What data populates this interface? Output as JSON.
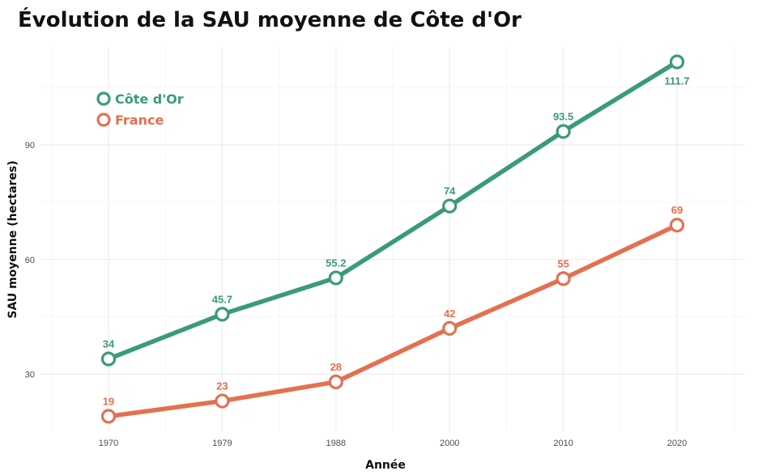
{
  "chart_data": {
    "type": "line",
    "title": "Évolution de la SAU moyenne de Côte d'Or",
    "xlabel": "Année",
    "ylabel": "SAU moyenne (hectares)",
    "x": [
      1970,
      1979,
      1988,
      2000,
      2010,
      2020
    ],
    "xticks": [
      1970,
      1979,
      1988,
      2000,
      2010,
      2020
    ],
    "yticks": [
      30,
      60,
      90
    ],
    "ylim": [
      15,
      115
    ],
    "grid": true,
    "legend_position": "top-left",
    "series": [
      {
        "name": "Côte d'Or",
        "color": "#3a9b77",
        "values": [
          34,
          45.7,
          55.2,
          74,
          93.5,
          111.7
        ],
        "labels": [
          "34",
          "45.7",
          "55.2",
          "74",
          "93.5",
          "111.7"
        ],
        "label_below_last": true
      },
      {
        "name": "France",
        "color": "#e4704f",
        "values": [
          19,
          23,
          28,
          42,
          55,
          69
        ],
        "labels": [
          "19",
          "23",
          "28",
          "42",
          "55",
          "69"
        ],
        "label_below_last": false
      }
    ]
  }
}
